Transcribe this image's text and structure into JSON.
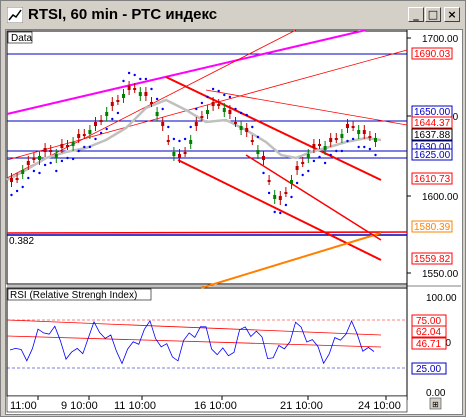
{
  "window": {
    "title": "RTSI, 60 min - РТС индекс",
    "buttons": {
      "minimize": "_",
      "maximize": "□",
      "close": "×"
    }
  },
  "price_panel": {
    "label": "Data",
    "level_label": "0.382",
    "axis_ticks": [
      "1700.00",
      "1650.00",
      "1600.00",
      "1550.00"
    ],
    "price_tags": [
      {
        "text": "1690.03",
        "color": "#ff0000"
      },
      {
        "text": "1650.00",
        "color": "#0000c0"
      },
      {
        "text": "1644.37",
        "color": "#ff0000"
      },
      {
        "text": "1637.88",
        "color": "#000000"
      },
      {
        "text": "1630.00",
        "color": "#0000c0"
      },
      {
        "text": "1625.00",
        "color": "#0000c0"
      },
      {
        "text": "1610.73",
        "color": "#ff0000"
      },
      {
        "text": "1580.39",
        "color": "#ff8000"
      },
      {
        "text": "1559.82",
        "color": "#ff0000"
      }
    ]
  },
  "rsi_panel": {
    "label": "RSI (Relative Strengh Index)",
    "axis_ticks": [
      "100.00",
      "50.00",
      "0.00"
    ],
    "value_tags": [
      {
        "text": "75.00",
        "color": "#ff0000"
      },
      {
        "text": "62.04",
        "color": "#ff0000"
      },
      {
        "text": "46.71",
        "color": "#ff0000"
      },
      {
        "text": "25.00",
        "color": "#0000c0"
      }
    ]
  },
  "time_axis": {
    "labels": [
      "11:00",
      "9 10:00",
      "11 10:00",
      "16 10:00",
      "21 10:00",
      "24 10:00"
    ]
  },
  "colors": {
    "background": "#ffffff",
    "bull_candle": "#008000",
    "bear_candle": "#c00000",
    "parabolic_sar": "#0000ff",
    "channel": "#ff0000",
    "fan_line": "#ff00ff",
    "orange_line": "#ff8000",
    "ma_line": "#c0c0c0"
  }
}
